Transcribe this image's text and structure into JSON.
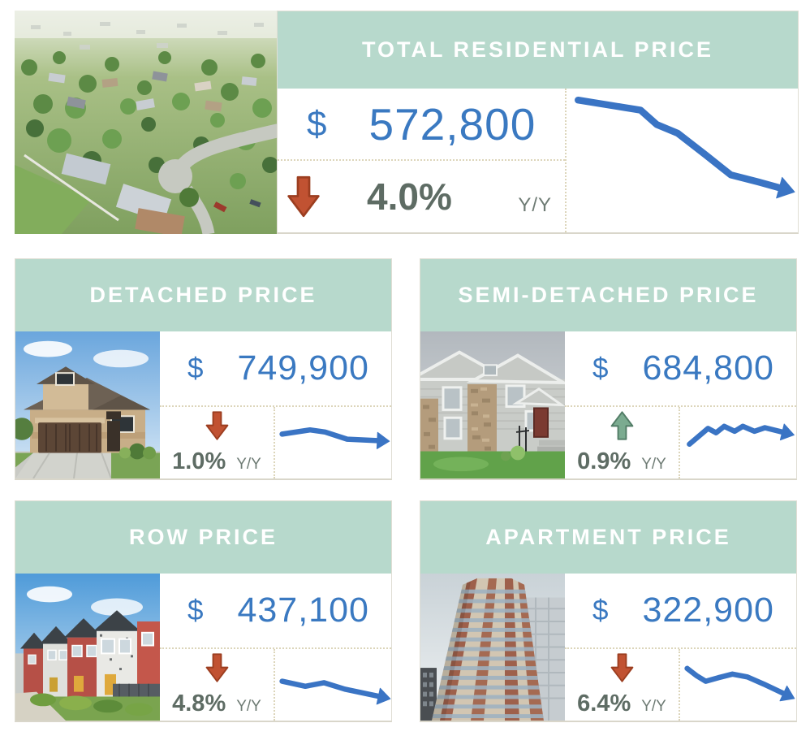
{
  "colors": {
    "header_bg": "#b7d9cc",
    "header_text": "#ffffff",
    "price_blue": "#3a79c1",
    "spark_blue": "#3a74c4",
    "down_red_fill": "#c15232",
    "down_red_stroke": "#9c3e20",
    "up_green_fill": "#7bab90",
    "up_green_stroke": "#527c66",
    "pct_text": "#5e6c64",
    "period_text": "#6e7b74",
    "dotted_line": "#dcd5ba",
    "card_border": "#e0ded4"
  },
  "icons": {
    "down": "block-arrow-down-icon",
    "up": "block-arrow-up-icon",
    "sparkline_end": "arrowhead-right-icon"
  },
  "cards": [
    {
      "id": "total-residential",
      "title": "TOTAL RESIDENTIAL PRICE",
      "currency": "$",
      "price": "572,800",
      "direction": "down",
      "change_pct": "4.0%",
      "period_label": "Y/Y",
      "photo": "aerial-neighborhood",
      "sparkline_points": [
        [
          5,
          8
        ],
        [
          32,
          15
        ],
        [
          39,
          25
        ],
        [
          48,
          31
        ],
        [
          60,
          46
        ],
        [
          71,
          60
        ],
        [
          83,
          65
        ],
        [
          92,
          69
        ]
      ]
    },
    {
      "id": "detached",
      "title": "DETACHED PRICE",
      "currency": "$",
      "price": "749,900",
      "direction": "down",
      "change_pct": "1.0%",
      "period_label": "Y/Y",
      "photo": "detached-house",
      "sparkline_points": [
        [
          6,
          38
        ],
        [
          30,
          32
        ],
        [
          43,
          35
        ],
        [
          62,
          45
        ],
        [
          88,
          47
        ]
      ]
    },
    {
      "id": "semi-detached",
      "title": "SEMI-DETACHED PRICE",
      "currency": "$",
      "price": "684,800",
      "direction": "up",
      "change_pct": "0.9%",
      "period_label": "Y/Y",
      "photo": "semi-detached-house",
      "sparkline_points": [
        [
          8,
          52
        ],
        [
          24,
          30
        ],
        [
          31,
          36
        ],
        [
          38,
          27
        ],
        [
          47,
          34
        ],
        [
          54,
          27
        ],
        [
          64,
          34
        ],
        [
          73,
          29
        ],
        [
          88,
          35
        ]
      ]
    },
    {
      "id": "row",
      "title": "ROW PRICE",
      "currency": "$",
      "price": "437,100",
      "direction": "down",
      "change_pct": "4.8%",
      "period_label": "Y/Y",
      "photo": "row-houses",
      "sparkline_points": [
        [
          6,
          45
        ],
        [
          26,
          52
        ],
        [
          42,
          47
        ],
        [
          60,
          56
        ],
        [
          89,
          66
        ]
      ]
    },
    {
      "id": "apartment",
      "title": "APARTMENT PRICE",
      "currency": "$",
      "price": "322,900",
      "direction": "down",
      "change_pct": "6.4%",
      "period_label": "Y/Y",
      "photo": "apartment-tower",
      "sparkline_points": [
        [
          6,
          27
        ],
        [
          14,
          37
        ],
        [
          22,
          45
        ],
        [
          33,
          40
        ],
        [
          45,
          35
        ],
        [
          58,
          39
        ],
        [
          72,
          49
        ],
        [
          89,
          62
        ]
      ]
    }
  ],
  "chart_data": [
    {
      "type": "line",
      "title": "TOTAL RESIDENTIAL PRICE",
      "current_value": 572800,
      "currency": "$",
      "yoy_change_pct": -4.0,
      "x": "time (unlabeled sparkline)",
      "trend_relative": [
        92,
        85,
        75,
        69,
        54,
        40,
        35,
        31
      ],
      "axes": "hidden",
      "legend": "none"
    },
    {
      "type": "line",
      "title": "DETACHED PRICE",
      "current_value": 749900,
      "currency": "$",
      "yoy_change_pct": -1.0,
      "x": "time (unlabeled sparkline)",
      "trend_relative": [
        62,
        68,
        65,
        55,
        53
      ],
      "axes": "hidden",
      "legend": "none"
    },
    {
      "type": "line",
      "title": "SEMI-DETACHED PRICE",
      "current_value": 684800,
      "currency": "$",
      "yoy_change_pct": 0.9,
      "x": "time (unlabeled sparkline)",
      "trend_relative": [
        48,
        70,
        64,
        73,
        66,
        73,
        66,
        71,
        65
      ],
      "axes": "hidden",
      "legend": "none"
    },
    {
      "type": "line",
      "title": "ROW PRICE",
      "current_value": 437100,
      "currency": "$",
      "yoy_change_pct": -4.8,
      "x": "time (unlabeled sparkline)",
      "trend_relative": [
        55,
        48,
        53,
        44,
        34
      ],
      "axes": "hidden",
      "legend": "none"
    },
    {
      "type": "line",
      "title": "APARTMENT PRICE",
      "current_value": 322900,
      "currency": "$",
      "yoy_change_pct": -6.4,
      "x": "time (unlabeled sparkline)",
      "trend_relative": [
        73,
        63,
        55,
        60,
        65,
        61,
        51,
        38
      ],
      "axes": "hidden",
      "legend": "none"
    }
  ]
}
